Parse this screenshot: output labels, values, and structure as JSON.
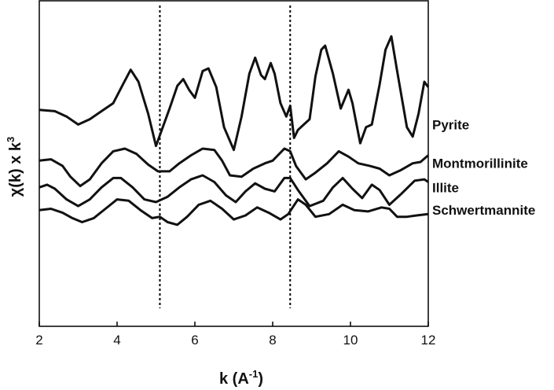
{
  "chart_data": {
    "type": "line",
    "title": "",
    "xlabel": "k (A",
    "xlabel_sup": "-1",
    "xlabel_end": ")",
    "ylabel": "χ(k) x k",
    "ylabel_sup": "3",
    "xlim": [
      2,
      12
    ],
    "x_ticks": [
      2,
      4,
      6,
      8,
      10,
      12
    ],
    "reference_lines_x": [
      5.1,
      8.45
    ],
    "grid": false,
    "legend": "labels at right end of each curve",
    "series": [
      {
        "name": "Pyrite",
        "offset": 2.4,
        "points": [
          [
            2.0,
            0.55
          ],
          [
            2.4,
            0.5
          ],
          [
            2.7,
            0.3
          ],
          [
            3.0,
            0.0
          ],
          [
            3.3,
            0.2
          ],
          [
            3.6,
            0.5
          ],
          [
            3.9,
            0.8
          ],
          [
            4.15,
            1.5
          ],
          [
            4.35,
            2.05
          ],
          [
            4.55,
            1.6
          ],
          [
            4.8,
            0.4
          ],
          [
            5.0,
            -0.8
          ],
          [
            5.15,
            -0.2
          ],
          [
            5.35,
            0.6
          ],
          [
            5.55,
            1.45
          ],
          [
            5.7,
            1.7
          ],
          [
            5.85,
            1.3
          ],
          [
            6.0,
            1.0
          ],
          [
            6.2,
            2.0
          ],
          [
            6.35,
            2.1
          ],
          [
            6.55,
            1.4
          ],
          [
            6.75,
            -0.1
          ],
          [
            7.0,
            -0.95
          ],
          [
            7.2,
            0.3
          ],
          [
            7.4,
            1.9
          ],
          [
            7.55,
            2.5
          ],
          [
            7.7,
            1.85
          ],
          [
            7.8,
            1.7
          ],
          [
            7.95,
            2.3
          ],
          [
            8.05,
            1.9
          ],
          [
            8.2,
            0.8
          ],
          [
            8.35,
            0.3
          ],
          [
            8.45,
            0.7
          ],
          [
            8.55,
            -0.5
          ],
          [
            8.65,
            -0.2
          ],
          [
            8.8,
            0.0
          ],
          [
            8.95,
            0.2
          ],
          [
            9.1,
            1.8
          ],
          [
            9.25,
            2.8
          ],
          [
            9.35,
            2.95
          ],
          [
            9.55,
            1.9
          ],
          [
            9.75,
            0.6
          ],
          [
            9.95,
            1.3
          ],
          [
            10.05,
            0.8
          ],
          [
            10.25,
            -0.7
          ],
          [
            10.4,
            -0.1
          ],
          [
            10.55,
            0.0
          ],
          [
            10.75,
            1.5
          ],
          [
            10.9,
            2.8
          ],
          [
            11.05,
            3.3
          ],
          [
            11.2,
            2.0
          ],
          [
            11.45,
            -0.1
          ],
          [
            11.6,
            -0.45
          ],
          [
            11.75,
            0.4
          ],
          [
            11.9,
            1.6
          ],
          [
            12.0,
            1.4
          ]
        ]
      },
      {
        "name": "Montmorillinite",
        "offset": 0.95,
        "points": [
          [
            2.0,
            0.1
          ],
          [
            2.3,
            0.15
          ],
          [
            2.6,
            -0.1
          ],
          [
            2.8,
            -0.5
          ],
          [
            3.05,
            -0.85
          ],
          [
            3.3,
            -0.6
          ],
          [
            3.6,
            0.0
          ],
          [
            3.9,
            0.45
          ],
          [
            4.2,
            0.55
          ],
          [
            4.5,
            0.35
          ],
          [
            4.8,
            -0.05
          ],
          [
            5.05,
            -0.3
          ],
          [
            5.35,
            -0.3
          ],
          [
            5.6,
            0.0
          ],
          [
            5.9,
            0.3
          ],
          [
            6.2,
            0.55
          ],
          [
            6.5,
            0.5
          ],
          [
            6.7,
            0.1
          ],
          [
            6.9,
            -0.45
          ],
          [
            7.2,
            -0.5
          ],
          [
            7.5,
            -0.2
          ],
          [
            7.8,
            0.0
          ],
          [
            8.0,
            0.1
          ],
          [
            8.3,
            0.55
          ],
          [
            8.45,
            0.45
          ],
          [
            8.6,
            -0.1
          ],
          [
            8.85,
            -0.6
          ],
          [
            9.1,
            -0.35
          ],
          [
            9.4,
            0.0
          ],
          [
            9.7,
            0.45
          ],
          [
            9.95,
            0.25
          ],
          [
            10.2,
            0.0
          ],
          [
            10.5,
            -0.1
          ],
          [
            10.75,
            -0.2
          ],
          [
            11.0,
            -0.45
          ],
          [
            11.3,
            -0.25
          ],
          [
            11.6,
            0.0
          ],
          [
            11.8,
            0.05
          ],
          [
            12.0,
            0.3
          ]
        ]
      },
      {
        "name": "Illite",
        "offset": 0.05,
        "points": [
          [
            2.0,
            0.0
          ],
          [
            2.2,
            0.1
          ],
          [
            2.4,
            -0.05
          ],
          [
            2.7,
            -0.45
          ],
          [
            3.0,
            -0.7
          ],
          [
            3.3,
            -0.45
          ],
          [
            3.6,
            0.0
          ],
          [
            3.9,
            0.35
          ],
          [
            4.1,
            0.35
          ],
          [
            4.4,
            0.0
          ],
          [
            4.7,
            -0.45
          ],
          [
            5.0,
            -0.55
          ],
          [
            5.3,
            -0.35
          ],
          [
            5.6,
            0.0
          ],
          [
            5.9,
            0.3
          ],
          [
            6.2,
            0.45
          ],
          [
            6.5,
            0.2
          ],
          [
            6.8,
            -0.3
          ],
          [
            7.05,
            -0.55
          ],
          [
            7.3,
            -0.15
          ],
          [
            7.55,
            0.15
          ],
          [
            7.8,
            -0.05
          ],
          [
            8.05,
            -0.15
          ],
          [
            8.3,
            0.35
          ],
          [
            8.45,
            0.35
          ],
          [
            8.65,
            -0.1
          ],
          [
            8.95,
            -0.7
          ],
          [
            9.3,
            -0.5
          ],
          [
            9.55,
            0.0
          ],
          [
            9.8,
            0.35
          ],
          [
            10.05,
            -0.05
          ],
          [
            10.3,
            -0.4
          ],
          [
            10.55,
            0.1
          ],
          [
            10.75,
            -0.1
          ],
          [
            11.0,
            -0.65
          ],
          [
            11.3,
            -0.25
          ],
          [
            11.65,
            0.25
          ],
          [
            11.9,
            0.3
          ],
          [
            12.0,
            0.2
          ]
        ]
      },
      {
        "name": "Schwertmannite",
        "offset": -0.8,
        "points": [
          [
            2.0,
            0.0
          ],
          [
            2.3,
            0.05
          ],
          [
            2.6,
            -0.1
          ],
          [
            2.85,
            -0.3
          ],
          [
            3.1,
            -0.45
          ],
          [
            3.4,
            -0.3
          ],
          [
            3.7,
            0.05
          ],
          [
            4.0,
            0.4
          ],
          [
            4.3,
            0.35
          ],
          [
            4.6,
            0.0
          ],
          [
            4.9,
            -0.3
          ],
          [
            5.1,
            -0.25
          ],
          [
            5.3,
            -0.45
          ],
          [
            5.55,
            -0.55
          ],
          [
            5.8,
            -0.25
          ],
          [
            6.1,
            0.2
          ],
          [
            6.4,
            0.35
          ],
          [
            6.7,
            0.05
          ],
          [
            7.0,
            -0.35
          ],
          [
            7.3,
            -0.2
          ],
          [
            7.6,
            0.1
          ],
          [
            7.9,
            -0.1
          ],
          [
            8.2,
            -0.35
          ],
          [
            8.4,
            -0.15
          ],
          [
            8.65,
            0.4
          ],
          [
            8.85,
            0.2
          ],
          [
            9.1,
            -0.25
          ],
          [
            9.45,
            -0.15
          ],
          [
            9.8,
            0.2
          ],
          [
            10.1,
            0.0
          ],
          [
            10.45,
            -0.05
          ],
          [
            10.8,
            0.1
          ],
          [
            11.0,
            0.05
          ],
          [
            11.2,
            -0.25
          ],
          [
            11.45,
            -0.25
          ],
          [
            11.7,
            -0.2
          ],
          [
            12.0,
            -0.15
          ]
        ]
      }
    ]
  }
}
